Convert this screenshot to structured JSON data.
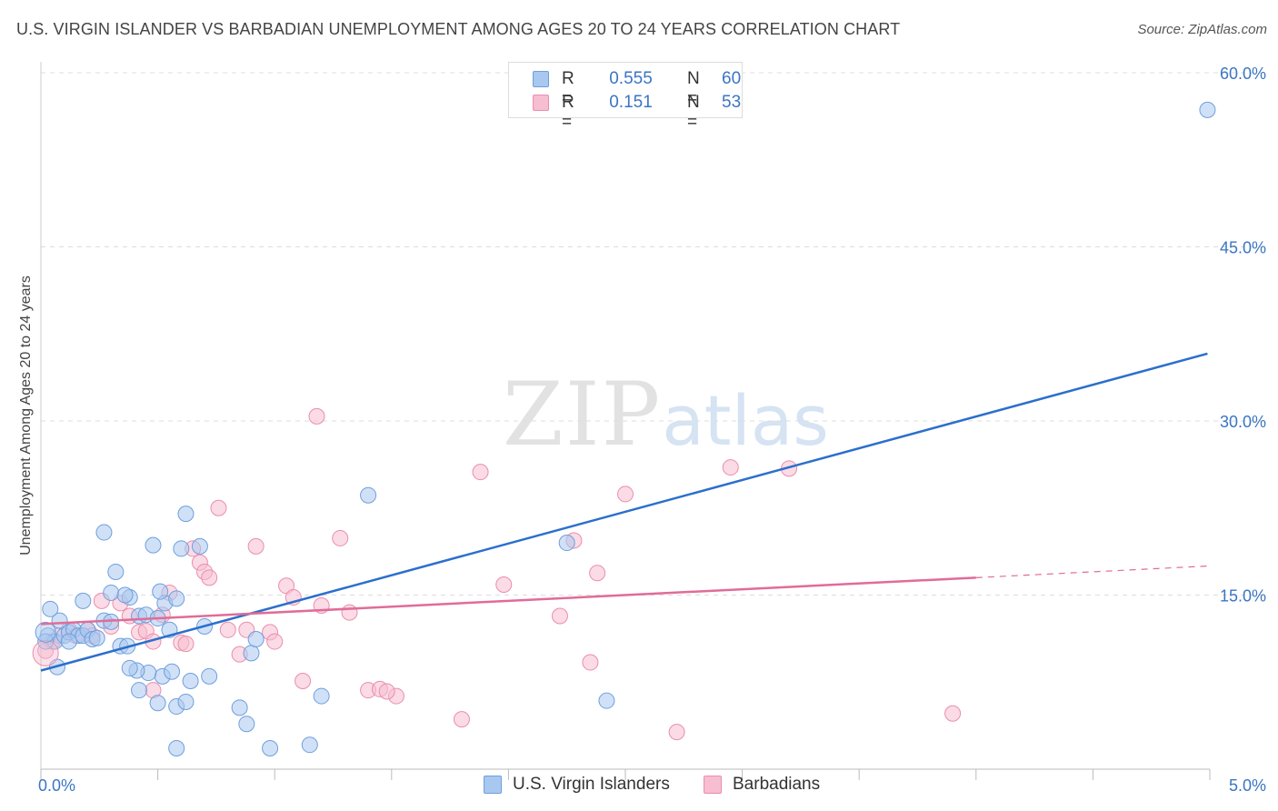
{
  "title": "U.S. VIRGIN ISLANDER VS BARBADIAN UNEMPLOYMENT AMONG AGES 20 TO 24 YEARS CORRELATION CHART",
  "source": "Source: ZipAtlas.com",
  "watermark": {
    "zip": "ZIP",
    "atlas": "atlas"
  },
  "legend": {
    "r_label": "R =",
    "n_label": "N =",
    "series": [
      {
        "r": "0.555",
        "n": "60"
      },
      {
        "r": "0.151",
        "n": "53"
      }
    ]
  },
  "colors": {
    "blue_fill": "#a9c8f0",
    "blue_stroke": "#6f9fdc",
    "blue_line": "#2b6fcc",
    "pink_fill": "#f7bdd0",
    "pink_stroke": "#ea8eae",
    "pink_line": "#e06c98",
    "tick_label": "#3a75c4",
    "grid": "#dddddd"
  },
  "chart_data": {
    "type": "scatter",
    "title": "U.S. VIRGIN ISLANDER VS BARBADIAN UNEMPLOYMENT AMONG AGES 20 TO 24 YEARS CORRELATION CHART",
    "xlabel": "",
    "ylabel": "Unemployment Among Ages 20 to 24 years",
    "xlim": [
      0,
      5
    ],
    "ylim": [
      0,
      60
    ],
    "x_tick_labels": [
      "0.0%",
      "5.0%"
    ],
    "y_ticks": [
      15,
      30,
      45,
      60
    ],
    "y_tick_labels": [
      "15.0%",
      "30.0%",
      "45.0%",
      "60.0%"
    ],
    "series": [
      {
        "name": "U.S. Virgin Islanders",
        "r": 0.555,
        "n": 60,
        "trend": {
          "x": [
            0,
            4.99
          ],
          "y": [
            8.5,
            35.8
          ]
        },
        "points": [
          [
            0.03,
            11.5
          ],
          [
            0.06,
            11.0
          ],
          [
            0.08,
            12.8
          ],
          [
            0.1,
            11.5
          ],
          [
            0.12,
            11.8
          ],
          [
            0.14,
            12.0
          ],
          [
            0.16,
            11.5
          ],
          [
            0.02,
            11.0
          ],
          [
            0.04,
            13.8
          ],
          [
            0.18,
            11.5
          ],
          [
            0.2,
            12.0
          ],
          [
            0.07,
            8.8
          ],
          [
            0.12,
            11.0
          ],
          [
            0.18,
            14.5
          ],
          [
            0.22,
            11.2
          ],
          [
            0.24,
            11.3
          ],
          [
            0.27,
            12.8
          ],
          [
            0.3,
            12.7
          ],
          [
            0.3,
            15.2
          ],
          [
            0.32,
            17.0
          ],
          [
            0.27,
            20.4
          ],
          [
            0.34,
            10.6
          ],
          [
            0.37,
            10.6
          ],
          [
            0.38,
            14.8
          ],
          [
            0.36,
            15.0
          ],
          [
            0.42,
            13.2
          ],
          [
            0.45,
            13.3
          ],
          [
            0.5,
            13.0
          ],
          [
            0.53,
            14.3
          ],
          [
            0.51,
            15.3
          ],
          [
            0.48,
            19.3
          ],
          [
            0.52,
            8.0
          ],
          [
            0.46,
            8.3
          ],
          [
            0.41,
            8.5
          ],
          [
            0.38,
            8.7
          ],
          [
            0.42,
            6.8
          ],
          [
            0.5,
            5.7
          ],
          [
            0.55,
            12.0
          ],
          [
            0.58,
            14.7
          ],
          [
            0.6,
            19.0
          ],
          [
            0.62,
            22.0
          ],
          [
            0.68,
            19.2
          ],
          [
            0.7,
            12.3
          ],
          [
            0.72,
            8.0
          ],
          [
            0.64,
            7.6
          ],
          [
            0.56,
            8.4
          ],
          [
            0.58,
            5.4
          ],
          [
            0.62,
            5.8
          ],
          [
            0.58,
            1.8
          ],
          [
            0.85,
            5.3
          ],
          [
            0.88,
            3.9
          ],
          [
            0.9,
            10.0
          ],
          [
            0.92,
            11.2
          ],
          [
            0.98,
            1.8
          ],
          [
            1.15,
            2.1
          ],
          [
            1.2,
            6.3
          ],
          [
            1.4,
            23.6
          ],
          [
            2.25,
            19.5
          ],
          [
            2.42,
            5.9
          ],
          [
            4.99,
            56.8
          ]
        ]
      },
      {
        "name": "Barbadians",
        "r": 0.151,
        "n": 53,
        "trend": {
          "x": [
            0,
            4.0
          ],
          "y": [
            12.5,
            16.5
          ]
        },
        "trend_ext": {
          "x": [
            4.0,
            4.99
          ],
          "y": [
            16.5,
            17.5
          ]
        },
        "points": [
          [
            0.02,
            10.2
          ],
          [
            0.05,
            11.0
          ],
          [
            0.08,
            11.5
          ],
          [
            0.12,
            12.0
          ],
          [
            0.15,
            11.5
          ],
          [
            0.2,
            12.0
          ],
          [
            0.22,
            11.5
          ],
          [
            0.26,
            14.5
          ],
          [
            0.3,
            12.3
          ],
          [
            0.34,
            14.3
          ],
          [
            0.38,
            13.2
          ],
          [
            0.42,
            11.8
          ],
          [
            0.45,
            11.9
          ],
          [
            0.48,
            11.0
          ],
          [
            0.52,
            13.3
          ],
          [
            0.55,
            15.2
          ],
          [
            0.6,
            10.9
          ],
          [
            0.65,
            19.0
          ],
          [
            0.68,
            17.8
          ],
          [
            0.7,
            17.0
          ],
          [
            0.72,
            16.5
          ],
          [
            0.76,
            22.5
          ],
          [
            0.8,
            12.0
          ],
          [
            0.85,
            9.9
          ],
          [
            0.88,
            12.0
          ],
          [
            0.92,
            19.2
          ],
          [
            0.98,
            11.8
          ],
          [
            1.0,
            11.0
          ],
          [
            1.05,
            15.8
          ],
          [
            1.08,
            14.8
          ],
          [
            1.12,
            7.6
          ],
          [
            1.18,
            30.4
          ],
          [
            1.2,
            14.1
          ],
          [
            1.28,
            19.9
          ],
          [
            1.32,
            13.5
          ],
          [
            1.4,
            6.8
          ],
          [
            1.45,
            6.9
          ],
          [
            1.52,
            6.3
          ],
          [
            1.8,
            4.3
          ],
          [
            1.88,
            25.6
          ],
          [
            1.98,
            15.9
          ],
          [
            2.22,
            13.2
          ],
          [
            2.28,
            19.7
          ],
          [
            2.35,
            9.2
          ],
          [
            2.38,
            16.9
          ],
          [
            2.5,
            23.7
          ],
          [
            2.72,
            3.2
          ],
          [
            2.95,
            26.0
          ],
          [
            3.2,
            25.9
          ],
          [
            3.9,
            4.8
          ],
          [
            0.62,
            10.8
          ],
          [
            0.48,
            6.8
          ],
          [
            1.48,
            6.7
          ]
        ]
      }
    ]
  }
}
